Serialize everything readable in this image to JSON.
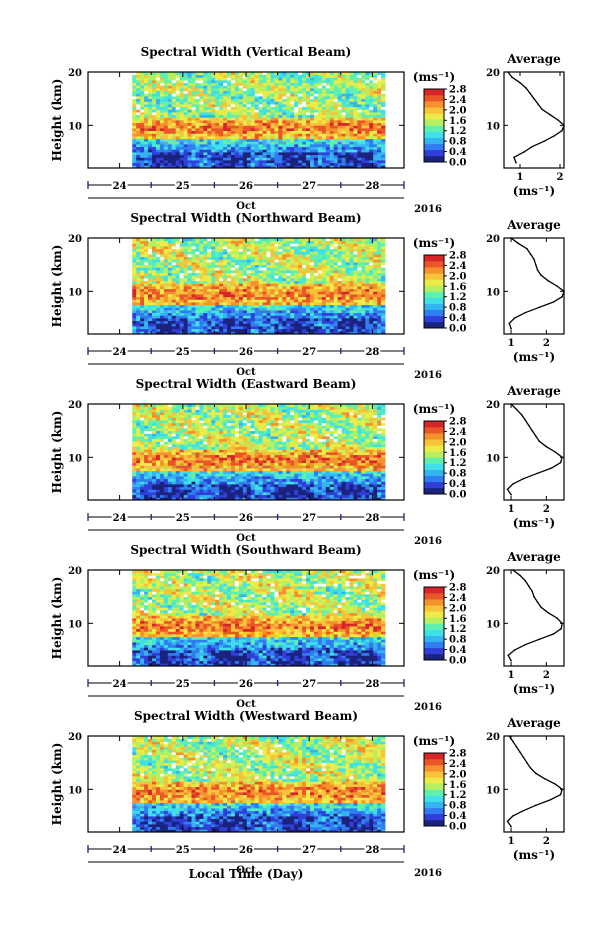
{
  "figure": {
    "xlabel": "Local Time (Day)",
    "month_label": "Oct",
    "year_label": "2016",
    "colorbar_unit": "(ms⁻¹)",
    "average_title": "Average"
  },
  "colors": {
    "colormap": [
      "#1a237e",
      "#2f3fd8",
      "#2f7df0",
      "#35b4f2",
      "#3fe0e8",
      "#5ff0b0",
      "#b6f060",
      "#ecec48",
      "#f7c33a",
      "#f5922e",
      "#ea5627",
      "#d7262a"
    ]
  },
  "chart_data": [
    {
      "type": "heatmap",
      "title": "Spectral Width (Vertical Beam)",
      "ylabel": "Height (km)",
      "y_ticks": [
        10,
        20
      ],
      "ylim": [
        2,
        20
      ],
      "x_ticks": [
        "24",
        "25",
        "26",
        "27",
        "28"
      ],
      "data_start_day": 24.2,
      "data_end_day": 28.2,
      "colorbar": {
        "unit": "(ms⁻¹)",
        "ticks": [
          "0.0",
          "0.4",
          "0.8",
          "1.2",
          "1.6",
          "2.0",
          "2.4",
          "2.8"
        ],
        "range": [
          0.0,
          2.8
        ]
      },
      "profile": {
        "title": "Average",
        "xlabel": "(ms⁻¹)",
        "x_ticks": [
          "1",
          "2"
        ],
        "xlim": [
          0.6,
          2.1
        ],
        "heights": [
          3,
          4,
          5,
          6,
          7,
          8,
          9,
          10,
          11,
          12,
          13,
          14,
          15,
          16,
          17,
          18,
          19,
          20
        ],
        "values": [
          0.9,
          0.85,
          1.1,
          1.3,
          1.6,
          1.85,
          2.05,
          2.1,
          1.95,
          1.75,
          1.55,
          1.45,
          1.35,
          1.25,
          1.15,
          1.0,
          0.8,
          0.7
        ]
      }
    },
    {
      "type": "heatmap",
      "title": "Spectral Width (Northward Beam)",
      "ylabel": "Height (km)",
      "y_ticks": [
        10,
        20
      ],
      "ylim": [
        2,
        20
      ],
      "x_ticks": [
        "24",
        "25",
        "26",
        "27",
        "28"
      ],
      "data_start_day": 24.2,
      "data_end_day": 28.2,
      "colorbar": {
        "unit": "(ms⁻¹)",
        "ticks": [
          "0.0",
          "0.4",
          "0.8",
          "1.2",
          "1.6",
          "2.0",
          "2.4",
          "2.8"
        ],
        "range": [
          0.0,
          2.8
        ]
      },
      "profile": {
        "title": "Average",
        "xlabel": "(ms⁻¹)",
        "x_ticks": [
          "1",
          "2"
        ],
        "xlim": [
          0.8,
          2.5
        ],
        "heights": [
          3,
          4,
          5,
          6,
          7,
          8,
          9,
          10,
          11,
          12,
          13,
          14,
          15,
          16,
          17,
          18,
          19,
          20
        ],
        "values": [
          1.0,
          0.95,
          1.1,
          1.4,
          1.8,
          2.2,
          2.45,
          2.5,
          2.3,
          2.05,
          1.85,
          1.75,
          1.7,
          1.65,
          1.55,
          1.45,
          1.2,
          1.0
        ]
      }
    },
    {
      "type": "heatmap",
      "title": "Spectral Width (Eastward Beam)",
      "ylabel": "Height (km)",
      "y_ticks": [
        10,
        20
      ],
      "ylim": [
        2,
        20
      ],
      "x_ticks": [
        "24",
        "25",
        "26",
        "27",
        "28"
      ],
      "data_start_day": 24.2,
      "data_end_day": 28.2,
      "colorbar": {
        "unit": "(ms⁻¹)",
        "ticks": [
          "0.0",
          "0.4",
          "0.8",
          "1.2",
          "1.6",
          "2.0",
          "2.4",
          "2.8"
        ],
        "range": [
          0.0,
          2.8
        ]
      },
      "profile": {
        "title": "Average",
        "xlabel": "(ms⁻¹)",
        "x_ticks": [
          "1",
          "2"
        ],
        "xlim": [
          0.8,
          2.5
        ],
        "heights": [
          3,
          4,
          5,
          6,
          7,
          8,
          9,
          10,
          11,
          12,
          13,
          14,
          15,
          16,
          17,
          18,
          19,
          20
        ],
        "values": [
          1.0,
          0.9,
          1.05,
          1.35,
          1.75,
          2.15,
          2.4,
          2.45,
          2.25,
          2.0,
          1.8,
          1.7,
          1.6,
          1.5,
          1.4,
          1.3,
          1.15,
          1.0
        ]
      }
    },
    {
      "type": "heatmap",
      "title": "Spectral Width (Southward Beam)",
      "ylabel": "Height (km)",
      "y_ticks": [
        10,
        20
      ],
      "ylim": [
        2,
        20
      ],
      "x_ticks": [
        "24",
        "25",
        "26",
        "27",
        "28"
      ],
      "data_start_day": 24.2,
      "data_end_day": 28.2,
      "colorbar": {
        "unit": "(ms⁻¹)",
        "ticks": [
          "0.0",
          "0.4",
          "0.8",
          "1.2",
          "1.6",
          "2.0",
          "2.4",
          "2.8"
        ],
        "range": [
          0.0,
          2.8
        ]
      },
      "profile": {
        "title": "Average",
        "xlabel": "(ms⁻¹)",
        "x_ticks": [
          "1",
          "2"
        ],
        "xlim": [
          0.8,
          2.5
        ],
        "heights": [
          3,
          4,
          5,
          6,
          7,
          8,
          9,
          10,
          11,
          12,
          13,
          14,
          15,
          16,
          17,
          18,
          19,
          20
        ],
        "values": [
          1.0,
          0.92,
          1.1,
          1.4,
          1.8,
          2.2,
          2.42,
          2.45,
          2.3,
          2.05,
          1.85,
          1.75,
          1.65,
          1.6,
          1.5,
          1.4,
          1.25,
          1.05
        ]
      }
    },
    {
      "type": "heatmap",
      "title": "Spectral Width (Westward Beam)",
      "ylabel": "Height (km)",
      "y_ticks": [
        10,
        20
      ],
      "ylim": [
        2,
        20
      ],
      "x_ticks": [
        "24",
        "25",
        "26",
        "27",
        "28"
      ],
      "data_start_day": 24.2,
      "data_end_day": 28.2,
      "colorbar": {
        "unit": "(ms⁻¹)",
        "ticks": [
          "0.0",
          "0.4",
          "0.8",
          "1.2",
          "1.6",
          "2.0",
          "2.4",
          "2.8"
        ],
        "range": [
          0.0,
          2.8
        ]
      },
      "profile": {
        "title": "Average",
        "xlabel": "(ms⁻¹)",
        "x_ticks": [
          "1",
          "2"
        ],
        "xlim": [
          0.8,
          2.5
        ],
        "heights": [
          3,
          4,
          5,
          6,
          7,
          8,
          9,
          10,
          11,
          12,
          13,
          14,
          15,
          16,
          17,
          18,
          19,
          20
        ],
        "values": [
          1.0,
          0.9,
          1.05,
          1.35,
          1.7,
          2.1,
          2.4,
          2.45,
          2.25,
          1.95,
          1.7,
          1.55,
          1.45,
          1.35,
          1.25,
          1.15,
          1.05,
          0.95
        ]
      }
    }
  ]
}
